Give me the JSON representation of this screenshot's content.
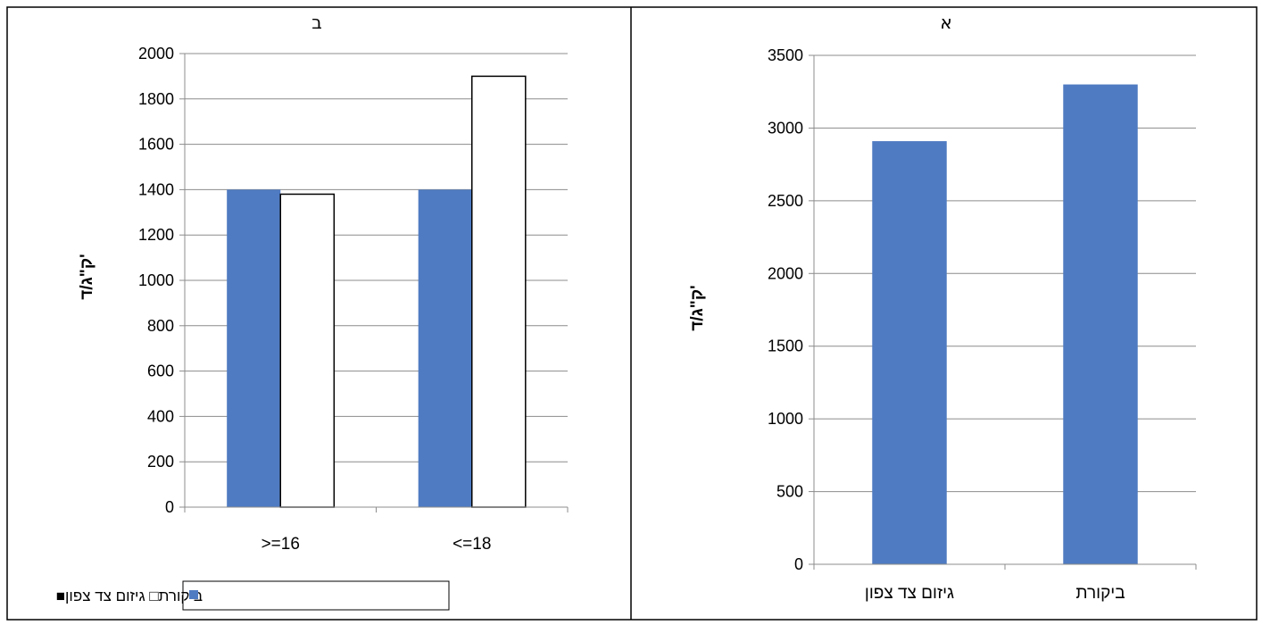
{
  "chart_data": [
    {
      "type": "bar",
      "title": "ב",
      "ylabel": "ק\"ג/ד'",
      "xlabel": "",
      "ylim": [
        0,
        2000
      ],
      "ytick_step": 200,
      "grid": true,
      "categories": [
        ">=16",
        "<=18"
      ],
      "series": [
        {
          "name": "גיזום צד צפון",
          "values": [
            1400,
            1400
          ],
          "color": "#4F7BC2"
        },
        {
          "name": "ביקורת",
          "values": [
            1380,
            1900
          ],
          "color": "#FFFFFF"
        }
      ],
      "legend": {
        "placement": "bottom",
        "text": "ביקורת□ גיזום צד צפון■"
      }
    },
    {
      "type": "bar",
      "title": "א",
      "ylabel": "ק\"ג/ד'",
      "xlabel": "",
      "ylim": [
        0,
        3500
      ],
      "ytick_step": 500,
      "grid": true,
      "categories": [
        "גיזום צד צפון",
        "ביקורת"
      ],
      "series": [
        {
          "values": [
            2910,
            3300
          ],
          "color": "#4F7BC2"
        }
      ]
    }
  ]
}
